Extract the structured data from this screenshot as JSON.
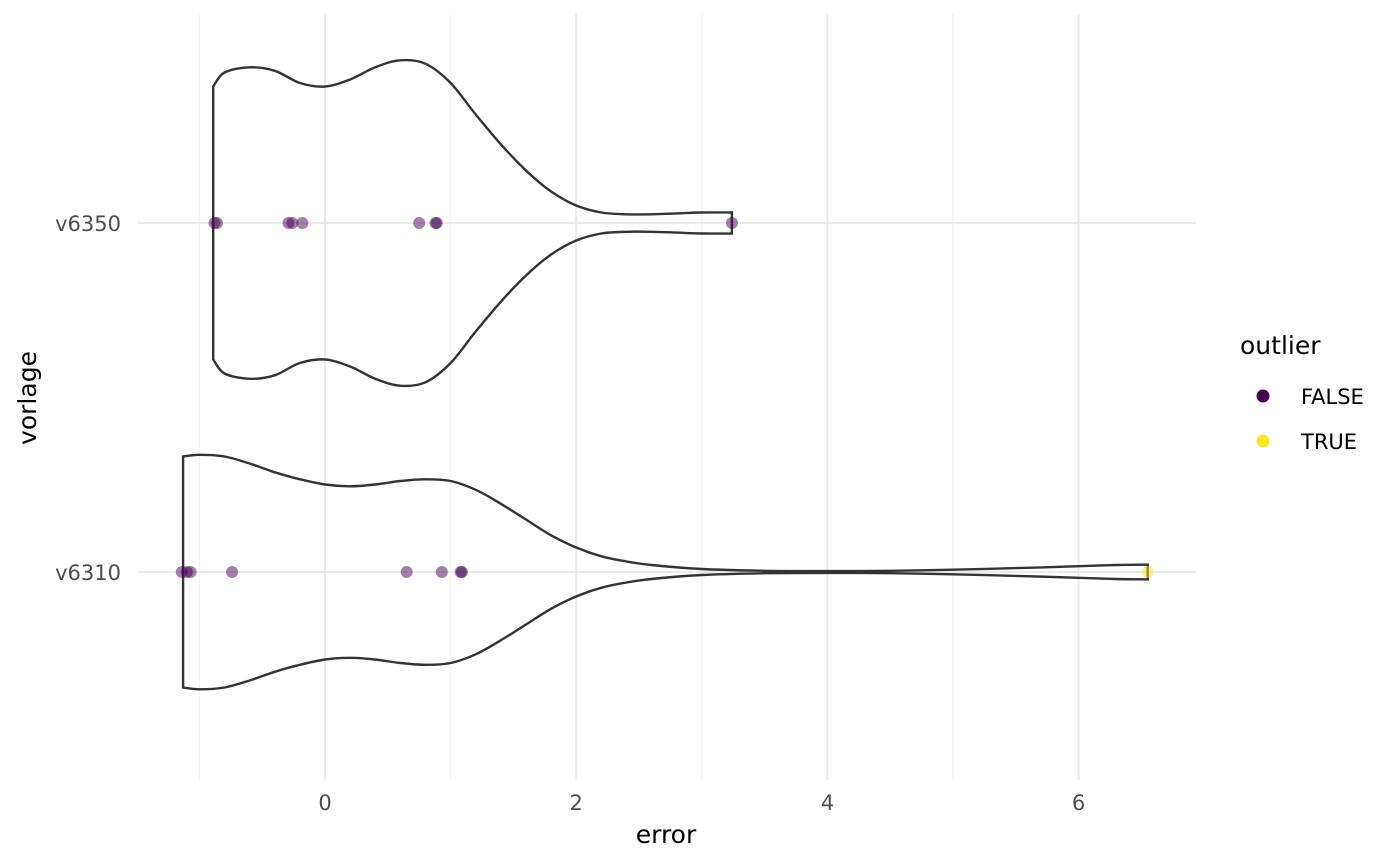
{
  "chart_data": {
    "type": "violin",
    "xlabel": "error",
    "ylabel": "vorlage",
    "xlim": [
      -1.5,
      7
    ],
    "x_ticks": [
      0,
      2,
      4,
      6
    ],
    "x_tick_labels": [
      "0",
      "2",
      "4",
      "6"
    ],
    "x_minor_ticks": [
      -1,
      1,
      3,
      5
    ],
    "categories": [
      "v6310",
      "v6350"
    ],
    "grid": true,
    "legend": {
      "title": "outlier",
      "position": "right",
      "entries": [
        {
          "label": "FALSE",
          "color": "#440154"
        },
        {
          "label": "TRUE",
          "color": "#fde725"
        }
      ]
    },
    "groups": [
      {
        "category": "v6350",
        "points": [
          {
            "x": -0.88,
            "outlier": false
          },
          {
            "x": -0.86,
            "outlier": false
          },
          {
            "x": -0.29,
            "outlier": false
          },
          {
            "x": -0.26,
            "outlier": false
          },
          {
            "x": -0.18,
            "outlier": false
          },
          {
            "x": 0.75,
            "outlier": false
          },
          {
            "x": 0.88,
            "outlier": false
          },
          {
            "x": 0.89,
            "outlier": false
          },
          {
            "x": 3.24,
            "outlier": false
          }
        ],
        "density": [
          [
            -0.89,
            0.78
          ],
          [
            -0.8,
            0.86
          ],
          [
            -0.6,
            0.89
          ],
          [
            -0.4,
            0.87
          ],
          [
            -0.2,
            0.8
          ],
          [
            0.0,
            0.78
          ],
          [
            0.2,
            0.82
          ],
          [
            0.4,
            0.89
          ],
          [
            0.6,
            0.93
          ],
          [
            0.8,
            0.91
          ],
          [
            1.0,
            0.8
          ],
          [
            1.2,
            0.62
          ],
          [
            1.4,
            0.45
          ],
          [
            1.6,
            0.3
          ],
          [
            1.8,
            0.18
          ],
          [
            2.0,
            0.1
          ],
          [
            2.2,
            0.06
          ],
          [
            2.4,
            0.05
          ],
          [
            2.6,
            0.05
          ],
          [
            2.8,
            0.055
          ],
          [
            3.0,
            0.06
          ],
          [
            3.24,
            0.06
          ]
        ]
      },
      {
        "category": "v6310",
        "points": [
          {
            "x": -1.14,
            "outlier": false
          },
          {
            "x": -1.1,
            "outlier": false
          },
          {
            "x": -1.07,
            "outlier": false
          },
          {
            "x": -0.74,
            "outlier": false
          },
          {
            "x": 0.65,
            "outlier": false
          },
          {
            "x": 0.93,
            "outlier": false
          },
          {
            "x": 1.08,
            "outlier": false
          },
          {
            "x": 1.09,
            "outlier": false
          },
          {
            "x": 6.55,
            "outlier": true
          }
        ],
        "density": [
          [
            -1.13,
            0.66
          ],
          [
            -1.0,
            0.67
          ],
          [
            -0.8,
            0.66
          ],
          [
            -0.6,
            0.62
          ],
          [
            -0.4,
            0.57
          ],
          [
            -0.2,
            0.53
          ],
          [
            0.0,
            0.5
          ],
          [
            0.2,
            0.49
          ],
          [
            0.4,
            0.5
          ],
          [
            0.6,
            0.52
          ],
          [
            0.8,
            0.53
          ],
          [
            1.0,
            0.52
          ],
          [
            1.2,
            0.47
          ],
          [
            1.4,
            0.39
          ],
          [
            1.6,
            0.3
          ],
          [
            1.8,
            0.21
          ],
          [
            2.0,
            0.14
          ],
          [
            2.2,
            0.09
          ],
          [
            2.4,
            0.06
          ],
          [
            2.6,
            0.04
          ],
          [
            3.0,
            0.017
          ],
          [
            3.5,
            0.007
          ],
          [
            4.0,
            0.005
          ],
          [
            4.5,
            0.007
          ],
          [
            5.0,
            0.013
          ],
          [
            5.5,
            0.022
          ],
          [
            6.0,
            0.033
          ],
          [
            6.3,
            0.04
          ],
          [
            6.55,
            0.042
          ]
        ]
      }
    ]
  }
}
